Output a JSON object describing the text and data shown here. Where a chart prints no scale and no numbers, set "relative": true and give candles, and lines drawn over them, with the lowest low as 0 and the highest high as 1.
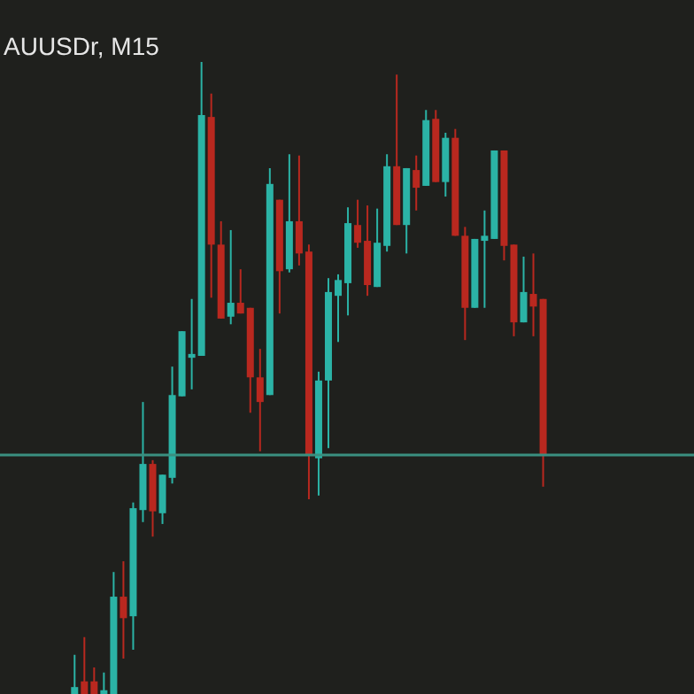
{
  "chart_data": {
    "type": "candlestick",
    "title": "AUUSDr, M15",
    "relative": true,
    "categories": [
      null,
      null,
      null,
      null,
      null,
      null,
      null,
      null,
      null,
      null,
      null,
      null,
      null,
      null,
      null,
      null,
      null,
      null,
      null,
      null,
      null,
      null,
      null,
      null,
      null,
      null,
      null,
      null,
      null,
      null,
      null,
      null,
      null,
      null,
      null,
      null,
      null,
      null,
      null,
      null,
      null,
      null,
      null,
      null,
      null,
      null,
      null,
      null,
      null
    ],
    "ohlc": [
      [
        0,
        0.062,
        0,
        0.011
      ],
      [
        0.02,
        0.09,
        0,
        0
      ],
      [
        0.02,
        0.042,
        0,
        0
      ],
      [
        0,
        0.034,
        0,
        0.006
      ],
      [
        0,
        0.193,
        0,
        0.154
      ],
      [
        0.154,
        0.21,
        0.056,
        0.12
      ],
      [
        0.123,
        0.303,
        0.07,
        0.294
      ],
      [
        0.291,
        0.462,
        0.272,
        0.364
      ],
      [
        0.364,
        0.37,
        0.249,
        0.289
      ],
      [
        0.286,
        0.347,
        0.269,
        0.347
      ],
      [
        0.342,
        0.518,
        0.333,
        0.473
      ],
      [
        0.471,
        0.574,
        0.471,
        0.574
      ],
      [
        0.532,
        0.625,
        0.482,
        0.538
      ],
      [
        0.535,
        1,
        0.535,
        0.916
      ],
      [
        0.913,
        0.95,
        0.627,
        0.711
      ],
      [
        0.711,
        0.748,
        0.594,
        0.594
      ],
      [
        0.597,
        0.734,
        0.585,
        0.619
      ],
      [
        0.619,
        0.672,
        0.602,
        0.602
      ],
      [
        0.611,
        0.611,
        0.445,
        0.501
      ],
      [
        0.501,
        0.546,
        0.384,
        0.462
      ],
      [
        0.473,
        0.832,
        0.473,
        0.807
      ],
      [
        0.782,
        0.782,
        0.602,
        0.669
      ],
      [
        0.672,
        0.854,
        0.667,
        0.748
      ],
      [
        0.748,
        0.852,
        0.678,
        0.697
      ],
      [
        0.7,
        0.711,
        0.308,
        0.378
      ],
      [
        0.373,
        0.51,
        0.314,
        0.496
      ],
      [
        0.496,
        0.658,
        0.389,
        0.636
      ],
      [
        0.63,
        0.664,
        0.557,
        0.655
      ],
      [
        0.65,
        0.77,
        0.599,
        0.745
      ],
      [
        0.742,
        0.782,
        0.706,
        0.714
      ],
      [
        0.717,
        0.773,
        0.63,
        0.647
      ],
      [
        0.644,
        0.768,
        0.644,
        0.714
      ],
      [
        0.709,
        0.854,
        0.7,
        0.835
      ],
      [
        0.835,
        0.98,
        0.742,
        0.742
      ],
      [
        0.742,
        0.832,
        0.697,
        0.832
      ],
      [
        0.829,
        0.852,
        0.765,
        0.801
      ],
      [
        0.804,
        0.924,
        0.804,
        0.908
      ],
      [
        0.91,
        0.924,
        0.81,
        0.81
      ],
      [
        0.81,
        0.888,
        0.787,
        0.88
      ],
      [
        0.88,
        0.894,
        0.725,
        0.725
      ],
      [
        0.725,
        0.739,
        0.56,
        0.611
      ],
      [
        0.611,
        0.72,
        0.611,
        0.72
      ],
      [
        0.717,
        0.765,
        0.611,
        0.725
      ],
      [
        0.72,
        0.86,
        0.72,
        0.86
      ],
      [
        0.86,
        0.86,
        0.686,
        0.709
      ],
      [
        0.711,
        0.711,
        0.566,
        0.588
      ],
      [
        0.588,
        0.692,
        0.588,
        0.636
      ],
      [
        0.633,
        0.697,
        0.566,
        0.613
      ],
      [
        0.625,
        0.625,
        0.328,
        0.378
      ]
    ],
    "colors": [
      "#2bb3a6",
      "#b9281f",
      "#b9281f",
      "#2bb3a6",
      "#2bb3a6",
      "#b9281f",
      "#2bb3a6",
      "#2bb3a6",
      "#b9281f",
      "#2bb3a6",
      "#2bb3a6",
      "#2bb3a6",
      "#2bb3a6",
      "#2bb3a6",
      "#b9281f",
      "#b9281f",
      "#2bb3a6",
      "#b9281f",
      "#b9281f",
      "#b9281f",
      "#2bb3a6",
      "#b9281f",
      "#2bb3a6",
      "#b9281f",
      "#b9281f",
      "#2bb3a6",
      "#2bb3a6",
      "#2bb3a6",
      "#2bb3a6",
      "#b9281f",
      "#b9281f",
      "#2bb3a6",
      "#2bb3a6",
      "#b9281f",
      "#2bb3a6",
      "#b9281f",
      "#2bb3a6",
      "#b9281f",
      "#2bb3a6",
      "#b9281f",
      "#b9281f",
      "#2bb3a6",
      "#2bb3a6",
      "#2bb3a6",
      "#b9281f",
      "#b9281f",
      "#2bb3a6",
      "#b9281f",
      "#b9281f"
    ],
    "ref_lines": [
      {
        "axis": "y",
        "value": 0.378,
        "color": "#3a8f80"
      }
    ]
  }
}
